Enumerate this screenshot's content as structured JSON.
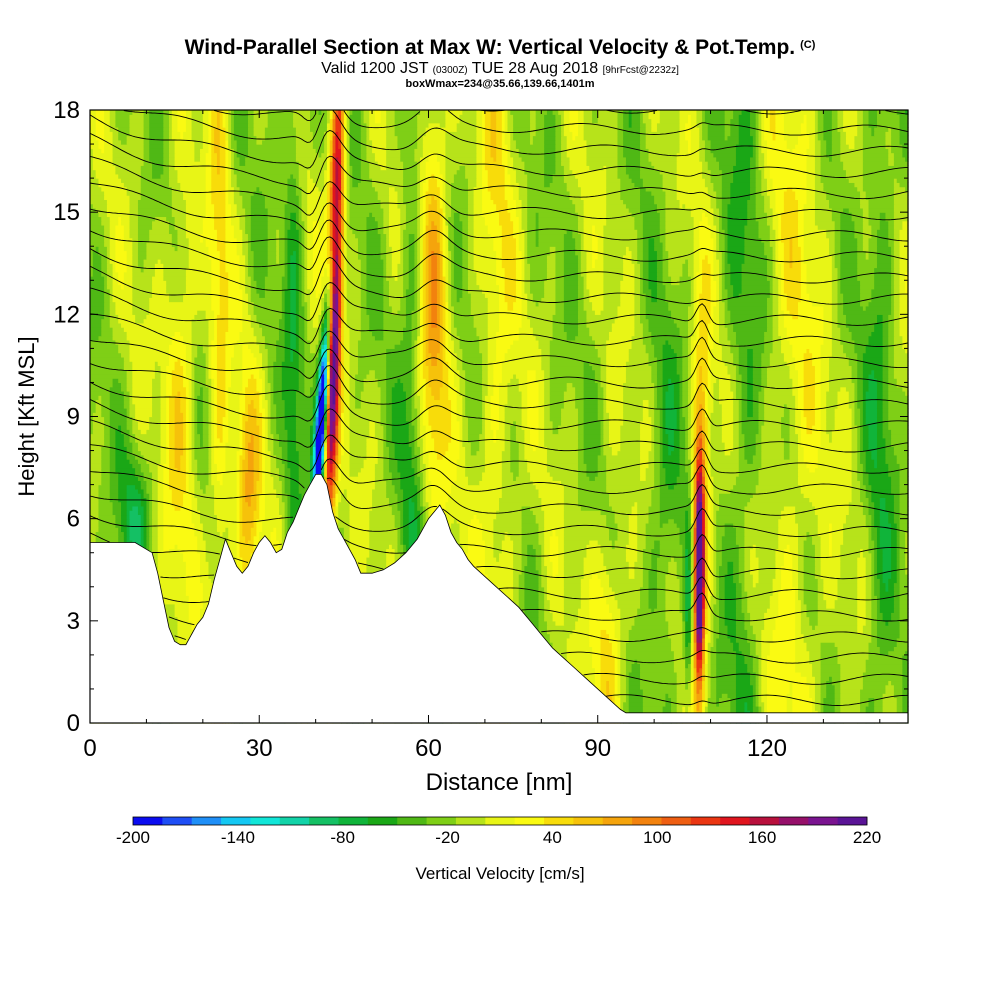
{
  "header": {
    "title": "Wind-Parallel Section at Max W: Vertical Velocity & Pot.Temp.",
    "title_mark": "(C)",
    "valid_main": "Valid 1200 JST",
    "valid_zulu": "(0300Z)",
    "valid_date": "TUE 28 Aug 2018",
    "valid_fcst": "[9hrFcst@2232z]",
    "box_line": "boxWmax=234@35.66,139.66,1401m"
  },
  "chart_data": {
    "type": "heatmap",
    "xlabel": "Distance [nm]",
    "ylabel": "Height [Kft MSL]",
    "xlim": [
      0,
      145
    ],
    "ylim": [
      0,
      18
    ],
    "x_ticks": [
      0,
      30,
      60,
      90,
      120
    ],
    "x_tick_labels": [
      "0",
      "30",
      "60",
      "90",
      "120"
    ],
    "y_ticks": [
      0,
      3,
      6,
      9,
      12,
      15,
      18
    ],
    "y_tick_labels": [
      "0",
      "3",
      "6",
      "9",
      "12",
      "15",
      "18"
    ],
    "colorbar": {
      "title": "Vertical Velocity [cm/s]",
      "tick_labels": [
        "-200",
        "-140",
        "-80",
        "-20",
        "40",
        "100",
        "160",
        "220"
      ],
      "colors": [
        "#0b0cf0",
        "#1e4ef5",
        "#1f8ff7",
        "#14c8f3",
        "#11e6d8",
        "#12d3a8",
        "#14c064",
        "#10b43a",
        "#1aa716",
        "#4fb815",
        "#7fcf16",
        "#b7e31a",
        "#e8f516",
        "#fafa12",
        "#f8dc0a",
        "#f6c20a",
        "#f5a40c",
        "#f2820e",
        "#ee5e12",
        "#ea3612",
        "#e0151e",
        "#b8103c",
        "#96106a",
        "#7a1490",
        "#5a1496"
      ]
    },
    "updraft_cores": [
      {
        "x": 16,
        "peak_cm_s": 60
      },
      {
        "x": 28,
        "peak_cm_s": 80
      },
      {
        "x": 43,
        "peak_cm_s": 220
      },
      {
        "x": 61,
        "peak_cm_s": 90
      },
      {
        "x": 92,
        "peak_cm_s": 60
      },
      {
        "x": 108,
        "peak_cm_s": 220
      }
    ],
    "downdraft_cores": [
      {
        "x": 41,
        "peak_cm_s": -200
      },
      {
        "x": 106,
        "peak_cm_s": -60
      }
    ],
    "theta_contours_c": [
      10,
      12,
      14,
      16,
      18,
      20,
      22,
      24,
      26,
      28,
      30,
      32,
      34,
      36,
      38,
      40,
      42,
      44,
      46,
      48,
      50,
      52,
      54,
      56,
      58,
      60,
      62,
      64,
      66,
      68,
      70,
      72,
      74
    ],
    "terrain": {
      "x": [
        0,
        2,
        5,
        8,
        11,
        12,
        13,
        14,
        15,
        16,
        17,
        18,
        19,
        20,
        21,
        22,
        23,
        24,
        25,
        26,
        27,
        28,
        29,
        30,
        31,
        32,
        33,
        34,
        35,
        36,
        37,
        38,
        39,
        40,
        41,
        42,
        43,
        44,
        45,
        46,
        47,
        48,
        50,
        52,
        54,
        56,
        58,
        60,
        62,
        63,
        64,
        65,
        66,
        67,
        68,
        70,
        72,
        74,
        76,
        78,
        80,
        82,
        84,
        86,
        88,
        90,
        92,
        94,
        95,
        97,
        100,
        105,
        110,
        120,
        130,
        140,
        145
      ],
      "y": [
        5.3,
        5.3,
        5.3,
        5.3,
        5.0,
        4.4,
        3.6,
        2.8,
        2.4,
        2.3,
        2.3,
        2.6,
        2.9,
        3.1,
        3.5,
        4.2,
        4.8,
        5.4,
        5.0,
        4.6,
        4.4,
        4.6,
        5.0,
        5.3,
        5.5,
        5.3,
        5.0,
        5.1,
        5.6,
        5.9,
        6.3,
        6.7,
        7.0,
        7.3,
        7.3,
        7.0,
        6.2,
        5.7,
        5.4,
        5.1,
        4.8,
        4.4,
        4.4,
        4.5,
        4.7,
        5.0,
        5.4,
        6.0,
        6.4,
        6.1,
        5.6,
        5.3,
        5.1,
        4.8,
        4.6,
        4.3,
        4.0,
        3.7,
        3.4,
        3.0,
        2.6,
        2.2,
        1.9,
        1.6,
        1.3,
        1.0,
        0.7,
        0.4,
        0.3,
        0.3,
        0.3,
        0.3,
        0.3,
        0.3,
        0.3,
        0.3,
        0.3
      ]
    }
  }
}
